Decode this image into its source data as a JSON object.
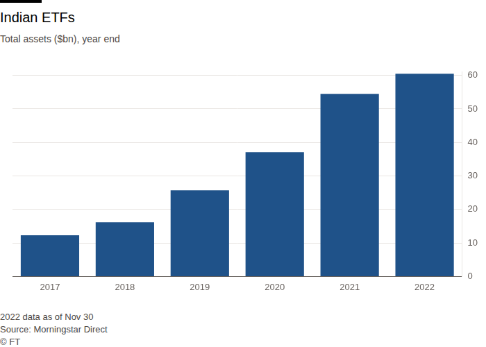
{
  "chart_data": {
    "type": "bar",
    "title": "Indian ETFs",
    "subtitle": "Total assets ($bn), year end",
    "categories": [
      "2017",
      "2018",
      "2019",
      "2020",
      "2021",
      "2022"
    ],
    "values": [
      12.3,
      16.2,
      25.7,
      37.1,
      54.5,
      60.5
    ],
    "color": "#1f5289",
    "ylim": [
      0,
      61
    ],
    "yticks": [
      0,
      10,
      20,
      30,
      40,
      50,
      60
    ],
    "grid": true,
    "annotations": [
      "2022 data as of Nov 30",
      "Source: Morningstar Direct",
      "© FT"
    ]
  }
}
